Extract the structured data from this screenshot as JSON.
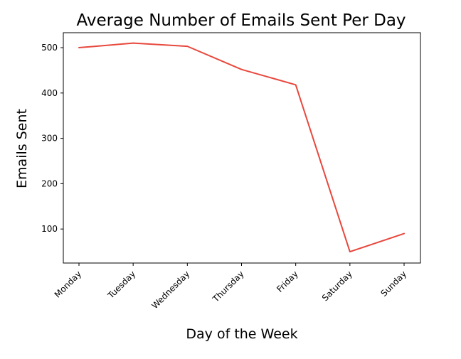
{
  "chart_data": {
    "type": "line",
    "title": "Average Number of Emails Sent Per Day",
    "xlabel": "Day of the Week",
    "ylabel": "Emails Sent",
    "categories": [
      "Monday",
      "Tuesday",
      "Wednesday",
      "Thursday",
      "Friday",
      "Saturday",
      "Sunday"
    ],
    "series": [
      {
        "values": [
          500,
          510,
          503,
          452,
          418,
          50,
          90
        ],
        "color": "#e8473c"
      }
    ],
    "yticks": [
      100,
      200,
      300,
      400,
      500
    ],
    "ylim": [
      25,
      533
    ],
    "grid": false,
    "legend": "none"
  }
}
